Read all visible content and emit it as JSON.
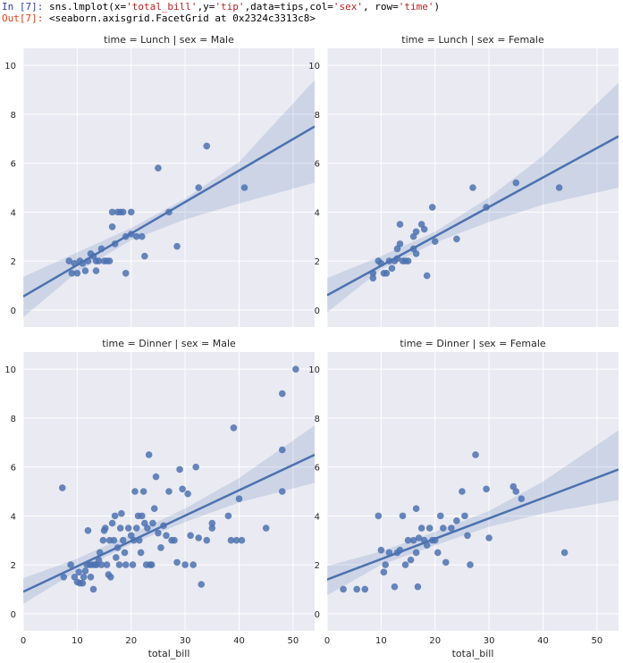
{
  "notebook": {
    "in_prompt": "In [7]:",
    "code_parts": [
      {
        "text": "sns.lmplot(x=",
        "type": "code"
      },
      {
        "text": "'total_bill'",
        "type": "str"
      },
      {
        "text": ",y=",
        "type": "code"
      },
      {
        "text": "'tip'",
        "type": "str"
      },
      {
        "text": ",data=tips,col=",
        "type": "code"
      },
      {
        "text": "'sex'",
        "type": "str"
      },
      {
        "text": ", row=",
        "type": "code"
      },
      {
        "text": "'time'",
        "type": "str"
      },
      {
        "text": ")",
        "type": "code"
      }
    ],
    "out_prompt": "Out[7]:",
    "out_text": "<seaborn.axisgrid.FacetGrid at 0x2324c3313c8>"
  },
  "colors": {
    "panel_bg": "#eaeaf2",
    "grid": "#ffffff",
    "series": "#4c72b0",
    "ci_band": "#4c72b0",
    "text": "#262626"
  },
  "chart_data": [
    {
      "type": "scatter",
      "title": "time = Lunch | sex = Male",
      "xlabel": "",
      "ylabel": "",
      "xlim": [
        0,
        54
      ],
      "ylim": [
        -0.7,
        10.7
      ],
      "xticks": [
        0,
        10,
        20,
        30,
        40,
        50
      ],
      "yticks": [
        0,
        2,
        4,
        6,
        8,
        10
      ],
      "regression": {
        "x": [
          0,
          54
        ],
        "y": [
          0.55,
          7.5
        ]
      },
      "ci": {
        "x": [
          0,
          10,
          20,
          30,
          40,
          54
        ],
        "lower": [
          -0.3,
          1.55,
          2.85,
          3.7,
          4.35,
          5.2
        ],
        "upper": [
          1.35,
          2.35,
          3.35,
          4.55,
          6.05,
          9.4
        ]
      },
      "points": [
        [
          8.5,
          2.0
        ],
        [
          9.0,
          1.5
        ],
        [
          9.5,
          1.9
        ],
        [
          10.0,
          1.5
        ],
        [
          10.5,
          2.0
        ],
        [
          11.5,
          1.6
        ],
        [
          11.0,
          1.9
        ],
        [
          12.0,
          2.0
        ],
        [
          12.5,
          2.3
        ],
        [
          13.0,
          2.2
        ],
        [
          13.5,
          2.0
        ],
        [
          13.5,
          1.6
        ],
        [
          14.0,
          2.0
        ],
        [
          14.5,
          2.5
        ],
        [
          15.0,
          2.0
        ],
        [
          15.5,
          2.0
        ],
        [
          16.0,
          2.0
        ],
        [
          16.5,
          4.0
        ],
        [
          16.5,
          3.4
        ],
        [
          17.0,
          2.7
        ],
        [
          17.5,
          4.0
        ],
        [
          18.0,
          4.0
        ],
        [
          18.5,
          4.0
        ],
        [
          19.0,
          3.0
        ],
        [
          19.0,
          1.5
        ],
        [
          20.0,
          4.0
        ],
        [
          20.0,
          3.1
        ],
        [
          21.0,
          3.0
        ],
        [
          22.0,
          3.0
        ],
        [
          22.5,
          2.2
        ],
        [
          25.0,
          5.8
        ],
        [
          27.0,
          4.0
        ],
        [
          28.5,
          2.6
        ],
        [
          32.5,
          5.0
        ],
        [
          34.0,
          6.7
        ],
        [
          41.0,
          5.0
        ]
      ]
    },
    {
      "type": "scatter",
      "title": "time = Lunch | sex = Female",
      "xlabel": "",
      "ylabel": "",
      "xlim": [
        0,
        54
      ],
      "ylim": [
        -0.7,
        10.7
      ],
      "xticks": [
        0,
        10,
        20,
        30,
        40,
        50
      ],
      "yticks": [
        0,
        2,
        4,
        6,
        8,
        10
      ],
      "regression": {
        "x": [
          0,
          54
        ],
        "y": [
          0.6,
          7.1
        ]
      },
      "ci": {
        "x": [
          0,
          10,
          20,
          30,
          40,
          54
        ],
        "lower": [
          -0.1,
          1.65,
          2.75,
          3.6,
          4.3,
          5.0
        ],
        "upper": [
          1.3,
          2.2,
          3.2,
          4.6,
          6.3,
          9.3
        ]
      },
      "points": [
        [
          8.5,
          1.5
        ],
        [
          8.5,
          1.3
        ],
        [
          9.5,
          2.0
        ],
        [
          10.0,
          1.9
        ],
        [
          10.5,
          1.5
        ],
        [
          11.0,
          1.5
        ],
        [
          11.5,
          2.0
        ],
        [
          12.0,
          1.7
        ],
        [
          12.5,
          2.0
        ],
        [
          13.0,
          2.1
        ],
        [
          13.0,
          2.5
        ],
        [
          13.5,
          2.7
        ],
        [
          13.5,
          3.5
        ],
        [
          14.0,
          2.0
        ],
        [
          14.5,
          2.0
        ],
        [
          15.0,
          2.0
        ],
        [
          16.0,
          3.0
        ],
        [
          16.0,
          2.5
        ],
        [
          16.5,
          2.3
        ],
        [
          16.5,
          3.2
        ],
        [
          17.5,
          3.5
        ],
        [
          18.0,
          3.3
        ],
        [
          18.5,
          1.4
        ],
        [
          19.5,
          4.2
        ],
        [
          20.0,
          2.8
        ],
        [
          24.0,
          2.9
        ],
        [
          27.0,
          5.0
        ],
        [
          29.5,
          4.2
        ],
        [
          35.0,
          5.2
        ],
        [
          43.0,
          5.0
        ]
      ]
    },
    {
      "type": "scatter",
      "title": "time = Dinner | sex = Male",
      "xlabel": "total_bill",
      "ylabel": "",
      "xlim": [
        0,
        54
      ],
      "ylim": [
        -0.7,
        10.7
      ],
      "xticks": [
        0,
        10,
        20,
        30,
        40,
        50
      ],
      "yticks": [
        0,
        2,
        4,
        6,
        8,
        10
      ],
      "regression": {
        "x": [
          0,
          54
        ],
        "y": [
          0.9,
          6.5
        ]
      },
      "ci": {
        "x": [
          0,
          10,
          20,
          30,
          40,
          54
        ],
        "lower": [
          0.4,
          1.75,
          2.85,
          3.75,
          4.55,
          5.35
        ],
        "upper": [
          1.45,
          2.25,
          3.25,
          4.3,
          5.55,
          7.7
        ]
      },
      "points": [
        [
          7.25,
          5.15
        ],
        [
          7.5,
          1.5
        ],
        [
          8.8,
          2.0
        ],
        [
          9.5,
          1.5
        ],
        [
          10.0,
          1.3
        ],
        [
          10.3,
          1.7
        ],
        [
          10.5,
          1.25
        ],
        [
          11.0,
          1.25
        ],
        [
          11.2,
          1.5
        ],
        [
          11.5,
          1.75
        ],
        [
          11.8,
          2.0
        ],
        [
          12.0,
          3.4
        ],
        [
          12.3,
          2.0
        ],
        [
          12.5,
          1.5
        ],
        [
          12.8,
          2.0
        ],
        [
          13.0,
          1.0
        ],
        [
          13.3,
          2.0
        ],
        [
          13.6,
          2.0
        ],
        [
          14.0,
          2.2
        ],
        [
          14.2,
          2.5
        ],
        [
          14.5,
          2.0
        ],
        [
          14.8,
          3.0
        ],
        [
          15.0,
          3.4
        ],
        [
          15.2,
          3.5
        ],
        [
          15.5,
          2.0
        ],
        [
          15.8,
          1.6
        ],
        [
          16.0,
          3.0
        ],
        [
          16.2,
          1.5
        ],
        [
          16.5,
          3.7
        ],
        [
          16.8,
          3.0
        ],
        [
          17.0,
          4.0
        ],
        [
          17.2,
          2.3
        ],
        [
          17.5,
          2.7
        ],
        [
          17.8,
          2.0
        ],
        [
          18.0,
          3.5
        ],
        [
          18.2,
          4.1
        ],
        [
          18.5,
          3.0
        ],
        [
          18.8,
          2.5
        ],
        [
          19.0,
          2.0
        ],
        [
          19.5,
          3.5
        ],
        [
          20.0,
          3.2
        ],
        [
          20.3,
          2.0
        ],
        [
          20.5,
          3.0
        ],
        [
          20.7,
          5.0
        ],
        [
          21.0,
          3.5
        ],
        [
          21.3,
          4.0
        ],
        [
          21.5,
          3.0
        ],
        [
          21.8,
          2.5
        ],
        [
          22.0,
          4.0
        ],
        [
          22.3,
          5.0
        ],
        [
          22.5,
          3.7
        ],
        [
          22.8,
          2.0
        ],
        [
          23.0,
          3.5
        ],
        [
          23.3,
          6.5
        ],
        [
          23.5,
          2.0
        ],
        [
          23.8,
          2.0
        ],
        [
          24.0,
          3.7
        ],
        [
          24.3,
          4.3
        ],
        [
          24.6,
          5.6
        ],
        [
          25.0,
          3.3
        ],
        [
          25.5,
          2.7
        ],
        [
          26.0,
          3.6
        ],
        [
          26.5,
          3.2
        ],
        [
          27.0,
          5.0
        ],
        [
          27.5,
          3.0
        ],
        [
          28.0,
          3.0
        ],
        [
          28.5,
          2.1
        ],
        [
          29.0,
          5.9
        ],
        [
          29.5,
          5.1
        ],
        [
          30.0,
          2.0
        ],
        [
          30.5,
          4.9
        ],
        [
          31.0,
          3.2
        ],
        [
          31.5,
          2.0
        ],
        [
          32.0,
          6.0
        ],
        [
          32.5,
          3.1
        ],
        [
          33.0,
          1.2
        ],
        [
          34.0,
          3.0
        ],
        [
          35.0,
          3.5
        ],
        [
          35.0,
          3.7
        ],
        [
          38.0,
          4.0
        ],
        [
          38.5,
          3.0
        ],
        [
          39.0,
          7.6
        ],
        [
          39.5,
          3.0
        ],
        [
          40.0,
          4.7
        ],
        [
          40.5,
          3.0
        ],
        [
          45.0,
          3.5
        ],
        [
          48.0,
          9.0
        ],
        [
          48.0,
          6.7
        ],
        [
          48.0,
          5.0
        ],
        [
          50.5,
          10.0
        ]
      ]
    },
    {
      "type": "scatter",
      "title": "time = Dinner | sex = Female",
      "xlabel": "total_bill",
      "ylabel": "",
      "xlim": [
        0,
        54
      ],
      "ylim": [
        -0.7,
        10.7
      ],
      "xticks": [
        0,
        10,
        20,
        30,
        40,
        50
      ],
      "yticks": [
        0,
        2,
        4,
        6,
        8,
        10
      ],
      "regression": {
        "x": [
          0,
          54
        ],
        "y": [
          1.4,
          5.9
        ]
      },
      "ci": {
        "x": [
          0,
          10,
          20,
          30,
          40,
          54
        ],
        "lower": [
          0.75,
          2.0,
          2.8,
          3.55,
          4.1,
          4.65
        ],
        "upper": [
          1.95,
          2.55,
          3.35,
          4.2,
          5.4,
          7.5
        ]
      },
      "points": [
        [
          3.0,
          1.0
        ],
        [
          5.5,
          1.0
        ],
        [
          7.0,
          1.0
        ],
        [
          9.5,
          4.0
        ],
        [
          10.0,
          2.6
        ],
        [
          10.5,
          1.7
        ],
        [
          10.8,
          2.0
        ],
        [
          11.5,
          2.5
        ],
        [
          12.5,
          1.1
        ],
        [
          13.0,
          2.5
        ],
        [
          13.5,
          2.6
        ],
        [
          14.0,
          4.0
        ],
        [
          14.5,
          2.0
        ],
        [
          15.0,
          3.0
        ],
        [
          15.5,
          2.2
        ],
        [
          16.0,
          3.0
        ],
        [
          16.5,
          4.3
        ],
        [
          16.5,
          2.5
        ],
        [
          16.8,
          1.1
        ],
        [
          17.0,
          3.1
        ],
        [
          17.5,
          3.5
        ],
        [
          18.0,
          3.0
        ],
        [
          18.5,
          2.8
        ],
        [
          19.0,
          3.5
        ],
        [
          19.5,
          3.0
        ],
        [
          20.0,
          3.0
        ],
        [
          20.5,
          2.5
        ],
        [
          21.0,
          4.0
        ],
        [
          21.5,
          3.5
        ],
        [
          22.0,
          2.1
        ],
        [
          23.0,
          3.5
        ],
        [
          24.0,
          3.8
        ],
        [
          25.0,
          5.0
        ],
        [
          25.5,
          4.0
        ],
        [
          26.0,
          3.2
        ],
        [
          26.5,
          2.0
        ],
        [
          27.5,
          6.5
        ],
        [
          29.5,
          5.1
        ],
        [
          30.0,
          3.1
        ],
        [
          34.5,
          5.2
        ],
        [
          35.0,
          5.0
        ],
        [
          36.0,
          4.7
        ],
        [
          44.0,
          2.5
        ]
      ]
    }
  ]
}
